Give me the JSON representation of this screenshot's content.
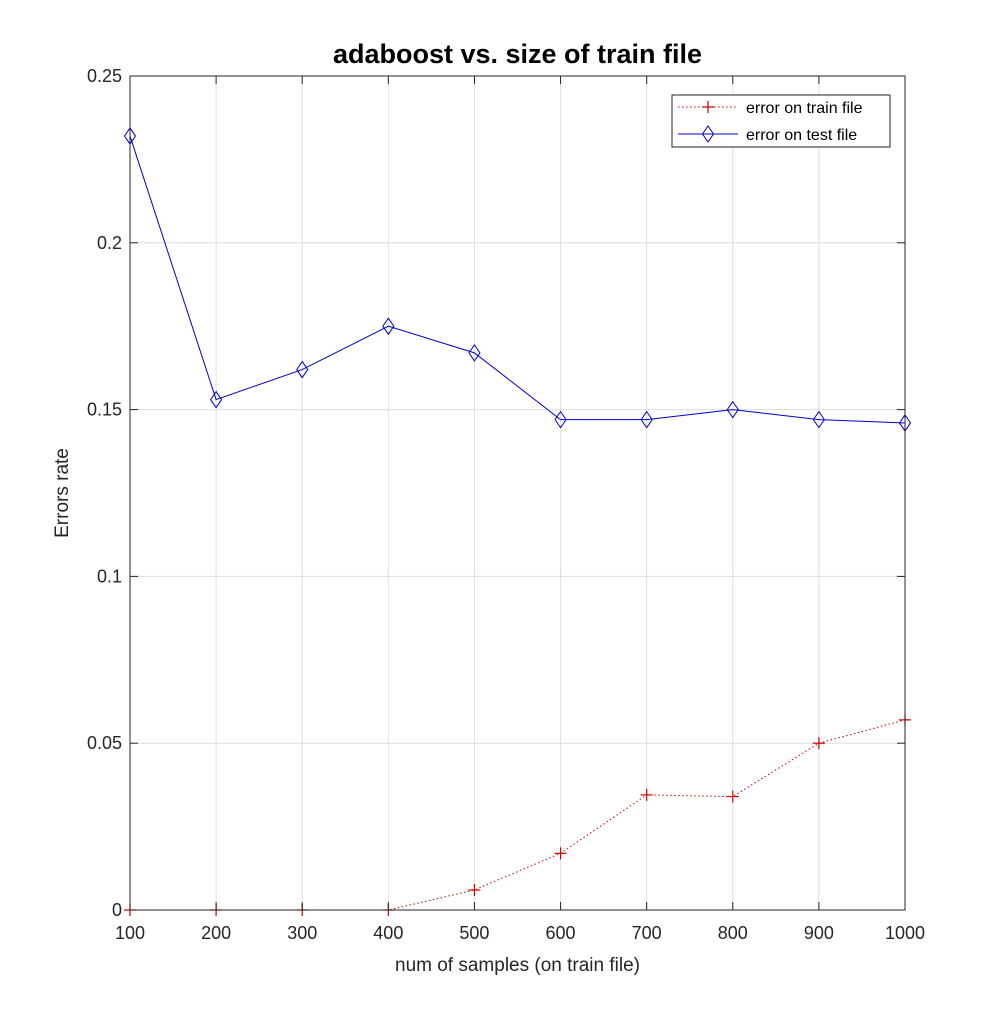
{
  "chart_data": {
    "type": "line",
    "title": "adaboost vs. size of train file",
    "xlabel": "num of samples (on train file)",
    "ylabel": "Errors rate",
    "xlim": [
      100,
      1000
    ],
    "ylim": [
      0,
      0.25
    ],
    "xticks": [
      100,
      200,
      300,
      400,
      500,
      600,
      700,
      800,
      900,
      1000
    ],
    "yticks": [
      0,
      0.05,
      0.1,
      0.15,
      0.2,
      0.25
    ],
    "xtick_labels": [
      "100",
      "200",
      "300",
      "400",
      "500",
      "600",
      "700",
      "800",
      "900",
      "1000"
    ],
    "ytick_labels": [
      "0",
      "0.05",
      "0.1",
      "0.15",
      "0.2",
      "0.25"
    ],
    "grid": true,
    "legend_position": "top-right",
    "x": [
      100,
      200,
      300,
      400,
      500,
      600,
      700,
      800,
      900,
      1000
    ],
    "series": [
      {
        "name": "error on train file",
        "color": "#cc0000",
        "line_style": "dotted",
        "marker": "plus",
        "values": [
          0,
          0,
          0,
          0,
          0.006,
          0.017,
          0.0345,
          0.034,
          0.05,
          0.057
        ]
      },
      {
        "name": "error on test file",
        "color": "#0000cc",
        "line_style": "solid",
        "marker": "diamond",
        "values": [
          0.232,
          0.153,
          0.162,
          0.175,
          0.167,
          0.147,
          0.147,
          0.15,
          0.147,
          0.146
        ]
      }
    ]
  }
}
